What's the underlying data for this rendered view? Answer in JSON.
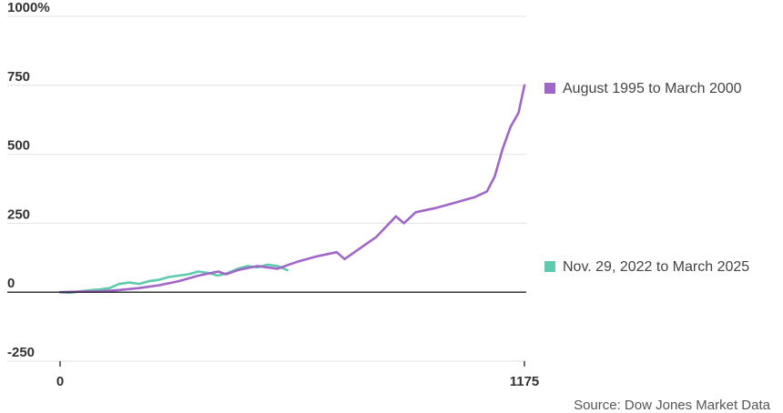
{
  "chart_data": {
    "type": "line",
    "title": "",
    "xlabel": "",
    "ylabel": "",
    "unit_suffix": "%",
    "xlim": [
      0,
      1175
    ],
    "ylim": [
      -250,
      1000
    ],
    "x_ticks": [
      0,
      1175
    ],
    "y_ticks": [
      1000,
      750,
      500,
      250,
      0,
      -250
    ],
    "y_tick_labels": [
      "1000%",
      "750",
      "500",
      "250",
      "0",
      "-250"
    ],
    "x_tick_labels": [
      "0",
      "1175"
    ],
    "grid": true,
    "legend_placement": "right",
    "series": [
      {
        "name": "August 1995 to March 2000",
        "color": "#a066c8",
        "x": [
          0,
          50,
          100,
          150,
          200,
          250,
          300,
          350,
          400,
          420,
          450,
          500,
          550,
          600,
          650,
          700,
          720,
          750,
          800,
          850,
          870,
          900,
          950,
          1000,
          1050,
          1080,
          1100,
          1120,
          1140,
          1160,
          1175
        ],
        "y": [
          0,
          2,
          3,
          8,
          15,
          25,
          40,
          60,
          75,
          65,
          80,
          95,
          85,
          110,
          130,
          145,
          120,
          150,
          200,
          275,
          250,
          290,
          305,
          325,
          345,
          365,
          420,
          520,
          600,
          650,
          750
        ]
      },
      {
        "name": "Nov. 29, 2022 to March 2025",
        "color": "#5ecbaf",
        "x": [
          0,
          25,
          50,
          75,
          100,
          125,
          150,
          175,
          200,
          225,
          250,
          275,
          300,
          325,
          350,
          375,
          400,
          425,
          450,
          475,
          500,
          525,
          550,
          575
        ],
        "y": [
          0,
          -2,
          3,
          7,
          10,
          15,
          30,
          35,
          30,
          40,
          45,
          55,
          60,
          65,
          75,
          70,
          60,
          70,
          85,
          95,
          90,
          100,
          95,
          80
        ]
      }
    ],
    "source": "Source: Dow Jones Market Data"
  }
}
